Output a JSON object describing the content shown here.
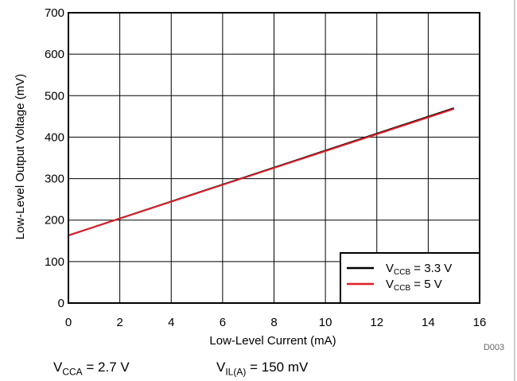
{
  "chart_data": {
    "type": "line",
    "xlabel": "Low-Level Current (mA)",
    "ylabel": "Low-Level Output Voltage (mV)",
    "xlim": [
      0,
      16
    ],
    "ylim": [
      0,
      700
    ],
    "x_ticks": [
      0,
      2,
      4,
      6,
      8,
      10,
      12,
      14,
      16
    ],
    "y_ticks": [
      0,
      100,
      200,
      300,
      400,
      500,
      600,
      700
    ],
    "grid": true,
    "legend_position": "bottom-right",
    "series": [
      {
        "name": "VCCB = 3.3 V",
        "legend_main": "V",
        "legend_sub": "CCB",
        "legend_rest": " = 3.3 V",
        "color": "#000000",
        "x": [
          0,
          15
        ],
        "y": [
          163,
          470
        ]
      },
      {
        "name": "VCCB = 5 V",
        "legend_main": "V",
        "legend_sub": "CCB",
        "legend_rest": " = 5 V",
        "color": "#e0202a",
        "x": [
          0,
          15
        ],
        "y": [
          163,
          468
        ]
      }
    ],
    "figure_id": "D003",
    "conditions": [
      {
        "main": "V",
        "sub": "CCA",
        "rest": " = 2.7 V"
      },
      {
        "main": "V",
        "sub": "IL(A)",
        "rest": " = 150 mV"
      }
    ]
  }
}
